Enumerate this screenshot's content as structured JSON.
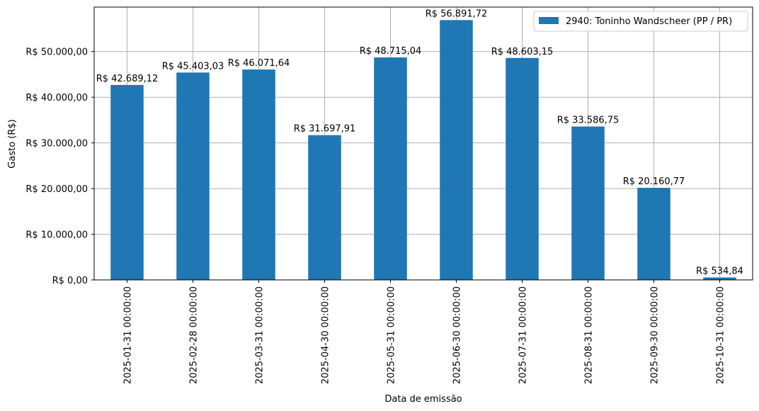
{
  "chart_data": {
    "type": "bar",
    "xlabel": "Data de emissão",
    "ylabel": "Gasto (R$)",
    "ylim": [
      0,
      59736
    ],
    "grid": true,
    "legend_position": "top-right",
    "bar_color": "#1f77b4",
    "categories": [
      "2025-01-31 00:00:00",
      "2025-02-28 00:00:00",
      "2025-03-31 00:00:00",
      "2025-04-30 00:00:00",
      "2025-05-31 00:00:00",
      "2025-06-30 00:00:00",
      "2025-07-31 00:00:00",
      "2025-08-31 00:00:00",
      "2025-09-30 00:00:00",
      "2025-10-31 00:00:00"
    ],
    "series": [
      {
        "name": "2940: Toninho Wandscheer (PP / PR)",
        "values": [
          42689.12,
          45403.03,
          46071.64,
          31697.91,
          48715.04,
          56891.72,
          48603.15,
          33586.75,
          20160.77,
          534.84
        ],
        "labels": [
          "R$ 42.689,12",
          "R$ 45.403,03",
          "R$ 46.071,64",
          "R$ 31.697,91",
          "R$ 48.715,04",
          "R$ 56.891,72",
          "R$ 48.603,15",
          "R$ 33.586,75",
          "R$ 20.160,77",
          "R$ 534,84"
        ]
      }
    ],
    "yticks": [
      {
        "value": 0,
        "label": "R$ 0,00"
      },
      {
        "value": 10000,
        "label": "R$ 10.000,00"
      },
      {
        "value": 20000,
        "label": "R$ 20.000,00"
      },
      {
        "value": 30000,
        "label": "R$ 30.000,00"
      },
      {
        "value": 40000,
        "label": "R$ 40.000,00"
      },
      {
        "value": 50000,
        "label": "R$ 50.000,00"
      }
    ]
  }
}
